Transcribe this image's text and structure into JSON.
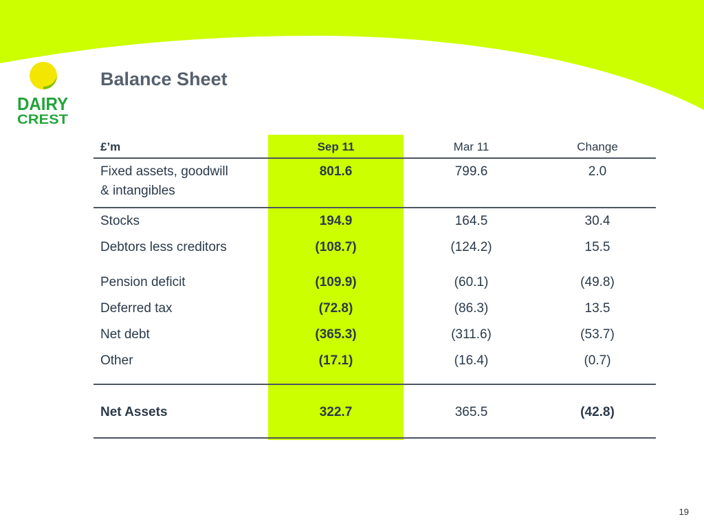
{
  "slide": {
    "title": "Balance Sheet",
    "page_number": "19",
    "accent_color": "#ccff00"
  },
  "logo": {
    "line1": "DAIRY",
    "line2": "CREST"
  },
  "table": {
    "headers": [
      "£’m",
      "Sep 11",
      "Mar 11",
      "Change"
    ],
    "rows": [
      {
        "label": "Fixed assets, goodwill",
        "label2": "& intangibles",
        "sep11": "801.6",
        "mar11": "799.6",
        "change": "2.0"
      },
      {
        "label": "Stocks",
        "sep11": "194.9",
        "mar11": "164.5",
        "change": "30.4"
      },
      {
        "label": "Debtors less creditors",
        "sep11": "(108.7)",
        "mar11": "(124.2)",
        "change": "15.5"
      },
      {
        "label": "Pension deficit",
        "sep11": "(109.9)",
        "mar11": "(60.1)",
        "change": "(49.8)"
      },
      {
        "label": "Deferred tax",
        "sep11": "(72.8)",
        "mar11": "(86.3)",
        "change": "13.5"
      },
      {
        "label": "Net debt",
        "sep11": "(365.3)",
        "mar11": "(311.6)",
        "change": "(53.7)"
      },
      {
        "label": "Other",
        "sep11": "(17.1)",
        "mar11": "(16.4)",
        "change": "(0.7)"
      }
    ],
    "total": {
      "label": "Net Assets",
      "sep11": "322.7",
      "mar11": "365.5",
      "change": "(42.8)"
    }
  }
}
